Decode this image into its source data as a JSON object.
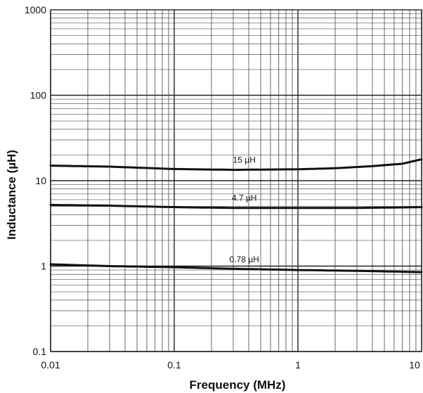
{
  "chart_data": {
    "type": "line",
    "title": "",
    "xlabel": "Frequency (MHz)",
    "ylabel": "Inductance (µH)",
    "x_scale": "log",
    "y_scale": "log",
    "xlim": [
      0.01,
      10
    ],
    "ylim": [
      0.1,
      1000
    ],
    "grid": true,
    "x_ticks": [
      "0.01",
      "0.1",
      "1",
      "10"
    ],
    "y_ticks": [
      "1000",
      "100",
      "10",
      "1",
      "0.1"
    ],
    "series": [
      {
        "name": "15 µH",
        "x": [
          0.01,
          0.03,
          0.1,
          0.3,
          1,
          2,
          4,
          7,
          10
        ],
        "y": [
          15,
          14.6,
          13.7,
          13.4,
          13.6,
          14,
          14.8,
          15.8,
          17.8
        ]
      },
      {
        "name": "4.7 µH",
        "x": [
          0.01,
          0.03,
          0.1,
          0.3,
          1,
          3,
          10
        ],
        "y": [
          5.2,
          5.1,
          4.9,
          4.8,
          4.8,
          4.8,
          4.9
        ]
      },
      {
        "name": "0.78 µH",
        "x": [
          0.01,
          0.03,
          0.1,
          0.3,
          1,
          3,
          10
        ],
        "y": [
          1.05,
          1.0,
          0.97,
          0.93,
          0.9,
          0.88,
          0.85
        ]
      }
    ]
  }
}
